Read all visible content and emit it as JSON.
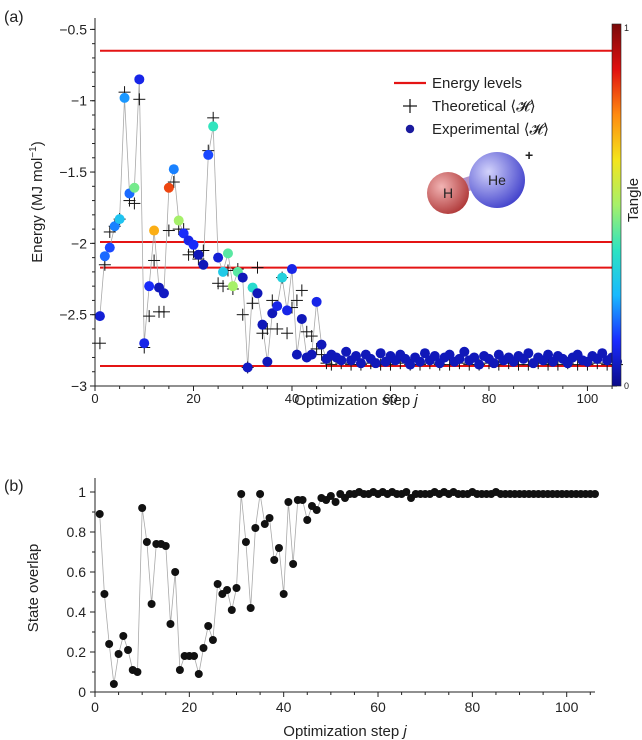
{
  "colors": {
    "levels": "#e41414",
    "theoretical": "#111111",
    "experimental": "#1a1a9e",
    "connector": "#a9a9a9",
    "overlap": "#111111",
    "colorbar_stops": [
      "#0a0a8a",
      "#1a2cff",
      "#19b9ff",
      "#2de3c2",
      "#a6f06a",
      "#f4e41c",
      "#ff8a10",
      "#e01010",
      "#7a0a0a"
    ],
    "molecule_h": "#c84a4a",
    "molecule_he": "#5a5ad8"
  },
  "chart_data": [
    {
      "type": "scatter",
      "panel_label": "(a)",
      "xlabel": "Optimization step",
      "xlabel_var": "j",
      "ylabel": "Energy (MJ mol",
      "ylabel_sup": "−1",
      "ylabel_close": ")",
      "xlim": [
        0,
        106
      ],
      "ylim": [
        -3.0,
        -0.42
      ],
      "x_ticks": [
        0,
        20,
        40,
        60,
        80,
        100
      ],
      "x_tick_labels": [
        "0",
        "20",
        "40",
        "60",
        "80",
        "100"
      ],
      "y_ticks": [
        -3,
        -2.5,
        -2,
        -1.5,
        -1,
        -0.5
      ],
      "y_tick_labels": [
        "−3",
        "−2.5",
        "−2",
        "−1.5",
        "−1",
        "−0.5"
      ],
      "energy_levels": [
        -0.65,
        -1.99,
        -2.17,
        -2.86
      ],
      "legend": {
        "position": "top-right",
        "levels": "Energy levels",
        "theoretical": "Theoretical ⟨𝓗⟩",
        "experimental": "Experimental ⟨𝓗⟩"
      },
      "molecule": {
        "h_label": "H",
        "he_label": "He",
        "charge": "+"
      },
      "colorbar": {
        "label": "Tangle",
        "min_label": "0",
        "max_label": "1",
        "range": [
          0,
          1
        ]
      },
      "series": [
        {
          "name": "Experimental ⟨𝓗⟩",
          "x": [
            1,
            2,
            3,
            4,
            5,
            6,
            7,
            8,
            9,
            10,
            11,
            12,
            13,
            14,
            15,
            16,
            17,
            18,
            19,
            20,
            21,
            22,
            23,
            24,
            25,
            26,
            27,
            28,
            29,
            30,
            31,
            32,
            33,
            34,
            35,
            36,
            37,
            38,
            39,
            40,
            41,
            42,
            43,
            44,
            45,
            46,
            47,
            48,
            49,
            50,
            51,
            52,
            53,
            54,
            55,
            56,
            57,
            58,
            59,
            60,
            61,
            62,
            63,
            64,
            65,
            66,
            67,
            68,
            69,
            70,
            71,
            72,
            73,
            74,
            75,
            76,
            77,
            78,
            79,
            80,
            81,
            82,
            83,
            84,
            85,
            86,
            87,
            88,
            89,
            90,
            91,
            92,
            93,
            94,
            95,
            96,
            97,
            98,
            99,
            100,
            101,
            102,
            103,
            104,
            105,
            106
          ],
          "y": [
            -2.51,
            -2.09,
            -2.03,
            -1.88,
            -1.83,
            -0.98,
            -1.65,
            -1.61,
            -0.85,
            -2.7,
            -2.3,
            -1.91,
            -2.31,
            -2.35,
            -1.61,
            -1.48,
            -1.84,
            -1.93,
            -1.98,
            -2.01,
            -2.08,
            -2.15,
            -1.38,
            -1.18,
            -2.1,
            -2.2,
            -2.07,
            -2.3,
            -2.2,
            -2.24,
            -2.87,
            -2.31,
            -2.35,
            -2.57,
            -2.83,
            -2.49,
            -2.44,
            -2.24,
            -2.47,
            -2.18,
            -2.78,
            -2.53,
            -2.8,
            -2.78,
            -2.41,
            -2.71,
            -2.81,
            -2.78,
            -2.8,
            -2.82,
            -2.76,
            -2.82,
            -2.79,
            -2.84,
            -2.78,
            -2.81,
            -2.84,
            -2.77,
            -2.83,
            -2.79,
            -2.82,
            -2.78,
            -2.81,
            -2.85,
            -2.8,
            -2.83,
            -2.77,
            -2.82,
            -2.79,
            -2.84,
            -2.8,
            -2.78,
            -2.83,
            -2.81,
            -2.76,
            -2.82,
            -2.8,
            -2.85,
            -2.79,
            -2.81,
            -2.84,
            -2.78,
            -2.82,
            -2.8,
            -2.83,
            -2.79,
            -2.81,
            -2.77,
            -2.84,
            -2.8,
            -2.82,
            -2.78,
            -2.83,
            -2.79,
            -2.81,
            -2.84,
            -2.8,
            -2.78,
            -2.82,
            -2.83,
            -2.79,
            -2.81,
            -2.77,
            -2.82,
            -2.8,
            -2.83
          ],
          "tangle": [
            0.08,
            0.18,
            0.15,
            0.2,
            0.28,
            0.22,
            0.18,
            0.45,
            0.1,
            0.1,
            0.12,
            0.7,
            0.05,
            0.06,
            0.82,
            0.2,
            0.5,
            0.12,
            0.1,
            0.12,
            0.05,
            0.05,
            0.15,
            0.38,
            0.08,
            0.3,
            0.42,
            0.5,
            0.42,
            0.05,
            0.06,
            0.35,
            0.05,
            0.05,
            0.05,
            0.05,
            0.1,
            0.32,
            0.1,
            0.1,
            0.05,
            0.05,
            0.05,
            0.05,
            0.1,
            0.05,
            0.05,
            0.05,
            0.05,
            0.05,
            0.05,
            0.05,
            0.05,
            0.05,
            0.05,
            0.05,
            0.05,
            0.05,
            0.05,
            0.05,
            0.05,
            0.05,
            0.05,
            0.05,
            0.05,
            0.05,
            0.05,
            0.05,
            0.05,
            0.05,
            0.05,
            0.05,
            0.05,
            0.05,
            0.05,
            0.05,
            0.05,
            0.05,
            0.05,
            0.05,
            0.05,
            0.05,
            0.05,
            0.05,
            0.05,
            0.05,
            0.05,
            0.05,
            0.05,
            0.05,
            0.05,
            0.05,
            0.05,
            0.05,
            0.05,
            0.05,
            0.05,
            0.05,
            0.05,
            0.05,
            0.05,
            0.05,
            0.05,
            0.05,
            0.05,
            0.05
          ]
        },
        {
          "name": "Theoretical ⟨𝓗⟩",
          "x": [
            1,
            2,
            3,
            4,
            5,
            6,
            7,
            8,
            9,
            10,
            11,
            12,
            13,
            14,
            15,
            16,
            17,
            18,
            19,
            20,
            21,
            22,
            23,
            24,
            25,
            26,
            27,
            28,
            29,
            30,
            31,
            32,
            33,
            34,
            35,
            36,
            37,
            38,
            39,
            40,
            41,
            42,
            43,
            44,
            45,
            46,
            47,
            48,
            50,
            52,
            54,
            56,
            58,
            60,
            62,
            64,
            66,
            68,
            70,
            72,
            74,
            76,
            78,
            80,
            82,
            84,
            86,
            88,
            90,
            92,
            94,
            96,
            98,
            100,
            102,
            104,
            106
          ],
          "y": [
            -2.7,
            -2.15,
            -1.92,
            -1.88,
            -1.83,
            -0.94,
            -1.7,
            -1.72,
            -0.99,
            -2.73,
            -2.51,
            -2.12,
            -2.48,
            -2.48,
            -1.91,
            -1.57,
            -1.9,
            -1.9,
            -2.08,
            -2.06,
            -2.11,
            -2.05,
            -1.35,
            -1.12,
            -2.28,
            -2.3,
            -2.19,
            -2.32,
            -2.18,
            -2.5,
            -2.87,
            -2.42,
            -2.17,
            -2.63,
            -2.6,
            -2.4,
            -2.6,
            -2.24,
            -2.63,
            -2.45,
            -2.4,
            -2.33,
            -2.62,
            -2.65,
            -2.74,
            -2.78,
            -2.84,
            -2.85,
            -2.84,
            -2.85,
            -2.85,
            -2.84,
            -2.85,
            -2.85,
            -2.84,
            -2.85,
            -2.85,
            -2.84,
            -2.85,
            -2.85,
            -2.84,
            -2.85,
            -2.85,
            -2.84,
            -2.85,
            -2.84,
            -2.85,
            -2.85,
            -2.84,
            -2.85,
            -2.85,
            -2.84,
            -2.85,
            -2.85,
            -2.84,
            -2.85,
            -2.85
          ]
        }
      ]
    },
    {
      "type": "scatter",
      "panel_label": "(b)",
      "xlabel": "Optimization step",
      "xlabel_var": "j",
      "ylabel": "State overlap",
      "xlim": [
        0,
        106
      ],
      "ylim": [
        0,
        1.07
      ],
      "x_ticks": [
        0,
        20,
        40,
        60,
        80,
        100
      ],
      "x_tick_labels": [
        "0",
        "20",
        "40",
        "60",
        "80",
        "100"
      ],
      "y_ticks": [
        0,
        0.2,
        0.4,
        0.6,
        0.8,
        1
      ],
      "y_tick_labels": [
        "0",
        "0.2",
        "0.4",
        "0.6",
        "0.8",
        "1"
      ],
      "series": [
        {
          "name": "",
          "x": [
            1,
            2,
            3,
            4,
            5,
            6,
            7,
            8,
            9,
            10,
            11,
            12,
            13,
            14,
            15,
            16,
            17,
            18,
            19,
            20,
            21,
            22,
            23,
            24,
            25,
            26,
            27,
            28,
            29,
            30,
            31,
            32,
            33,
            34,
            35,
            36,
            37,
            38,
            39,
            40,
            41,
            42,
            43,
            44,
            45,
            46,
            47,
            48,
            49,
            50,
            51,
            52,
            53,
            54,
            55,
            56,
            57,
            58,
            59,
            60,
            61,
            62,
            63,
            64,
            65,
            66,
            67,
            68,
            69,
            70,
            71,
            72,
            73,
            74,
            75,
            76,
            77,
            78,
            79,
            80,
            81,
            82,
            83,
            84,
            85,
            86,
            87,
            88,
            89,
            90,
            91,
            92,
            93,
            94,
            95,
            96,
            97,
            98,
            99,
            100,
            101,
            102,
            103,
            104,
            105,
            106
          ],
          "y": [
            0.89,
            0.49,
            0.24,
            0.04,
            0.19,
            0.28,
            0.21,
            0.11,
            0.1,
            0.92,
            0.75,
            0.44,
            0.74,
            0.74,
            0.73,
            0.34,
            0.6,
            0.11,
            0.18,
            0.18,
            0.18,
            0.09,
            0.22,
            0.33,
            0.26,
            0.54,
            0.49,
            0.51,
            0.41,
            0.52,
            0.99,
            0.75,
            0.42,
            0.82,
            0.99,
            0.84,
            0.87,
            0.66,
            0.72,
            0.49,
            0.95,
            0.64,
            0.96,
            0.96,
            0.86,
            0.93,
            0.91,
            0.97,
            0.96,
            0.98,
            0.95,
            0.99,
            0.97,
            0.99,
            0.99,
            1.0,
            0.99,
            0.99,
            1.0,
            0.99,
            1.0,
            0.99,
            1.0,
            0.99,
            0.99,
            1.0,
            0.97,
            0.99,
            0.99,
            0.99,
            0.99,
            1.0,
            0.99,
            1.0,
            0.99,
            1.0,
            0.99,
            0.99,
            0.99,
            1.0,
            0.99,
            0.99,
            0.99,
            0.99,
            1.0,
            0.99,
            0.99,
            0.99,
            0.99,
            0.99,
            0.99,
            0.99,
            0.99,
            0.99,
            0.99,
            0.99,
            0.99,
            0.99,
            0.99,
            0.99,
            0.99,
            0.99,
            0.99,
            0.99,
            0.99,
            0.99
          ]
        }
      ]
    }
  ]
}
